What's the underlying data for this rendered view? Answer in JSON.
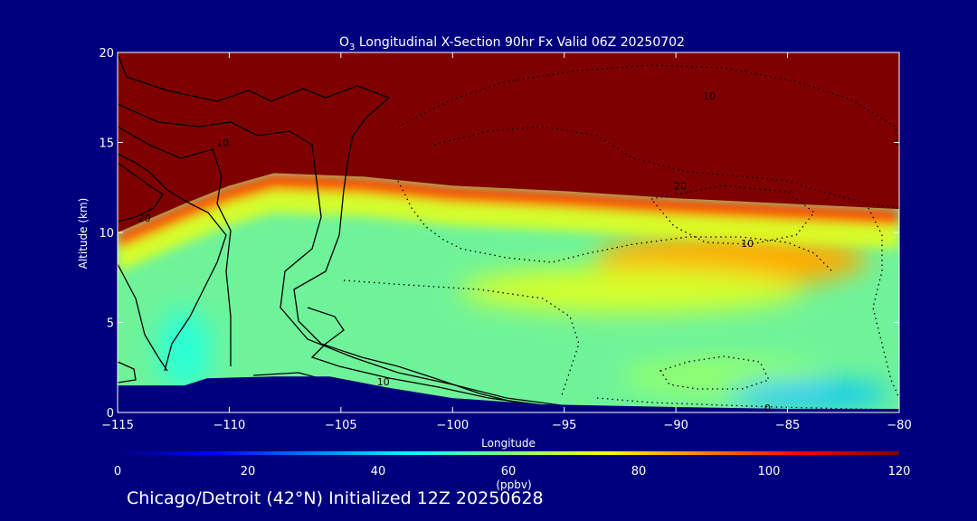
{
  "chart_data": {
    "type": "heatmap",
    "title": {
      "species": "O",
      "species_sub": "3",
      "rest": " Longitudinal X-Section 90hr  Fx Valid 06Z 20250702"
    },
    "xlabel": "Longitude",
    "ylabel": "Altitude (km)",
    "xlim": [
      -115,
      -80
    ],
    "ylim": [
      0,
      20
    ],
    "x_ticks": [
      -115,
      -110,
      -105,
      -100,
      -95,
      -90,
      -85,
      -80
    ],
    "x_tick_labels": [
      "−115",
      "−110",
      "−105",
      "−100",
      "−95",
      "−90",
      "−85",
      "−80"
    ],
    "y_ticks": [
      0,
      5,
      10,
      15,
      20
    ],
    "y_tick_labels": [
      "0",
      "5",
      "10",
      "15",
      "20"
    ],
    "colorbar": {
      "min": 0,
      "max": 120,
      "ticks": [
        0,
        20,
        40,
        60,
        80,
        100,
        120
      ],
      "tick_labels": [
        "0",
        "20",
        "40",
        "60",
        "80",
        "100",
        "120"
      ],
      "units": "(ppbv)",
      "colormap": [
        "#00007f",
        "#0000ff",
        "#0080ff",
        "#00ffff",
        "#80ff80",
        "#ffff00",
        "#ff8000",
        "#ff0000",
        "#7f0000"
      ]
    },
    "ozone_fields": {
      "stratosphere_ppbv": 120,
      "tropopause_height_km": [
        {
          "lon": -115,
          "km": 10
        },
        {
          "lon": -112,
          "km": 11.6
        },
        {
          "lon": -110,
          "km": 12.6
        },
        {
          "lon": -108,
          "km": 13.3
        },
        {
          "lon": -104,
          "km": 13.1
        },
        {
          "lon": -100,
          "km": 12.6
        },
        {
          "lon": -95,
          "km": 12.3
        },
        {
          "lon": -90,
          "km": 11.9
        },
        {
          "lon": -85,
          "km": 11.6
        },
        {
          "lon": -80,
          "km": 11.3
        }
      ],
      "features": [
        {
          "name": "upper-troposphere-high",
          "lon": -87.5,
          "km": 8.5,
          "ppbv": 85
        },
        {
          "name": "midlevel-band",
          "lon": -92,
          "km": 6.8,
          "ppbv": 70
        },
        {
          "name": "low-level-pocket",
          "lon": -88,
          "km": 2.0,
          "ppbv": 62
        },
        {
          "name": "boundary-layer-low",
          "lon": -84,
          "km": 1.0,
          "ppbv": 38
        },
        {
          "name": "western-lowlevel",
          "lon": -112,
          "km": 3.5,
          "ppbv": 50
        }
      ]
    },
    "terrain_km": [
      {
        "lon": -115,
        "km": 1.5
      },
      {
        "lon": -112,
        "km": 1.5
      },
      {
        "lon": -111,
        "km": 1.9
      },
      {
        "lon": -108,
        "km": 2.0
      },
      {
        "lon": -105.5,
        "km": 2.0
      },
      {
        "lon": -103,
        "km": 1.4
      },
      {
        "lon": -100,
        "km": 0.8
      },
      {
        "lon": -96,
        "km": 0.45
      },
      {
        "lon": -90,
        "km": 0.3
      },
      {
        "lon": -85,
        "km": 0.2
      },
      {
        "lon": -80,
        "km": 0.2
      }
    ],
    "contour_labels": [
      {
        "text": "10",
        "lon": -110.3,
        "km": 15.0
      },
      {
        "text": "20",
        "lon": -113.8,
        "km": 10.8
      },
      {
        "text": "10",
        "lon": -88.5,
        "km": 17.6
      },
      {
        "text": "20",
        "lon": -89.8,
        "km": 12.6
      },
      {
        "text": "10",
        "lon": -86.8,
        "km": 9.4
      },
      {
        "text": "10",
        "lon": -103.1,
        "km": 1.7
      },
      {
        "text": "0",
        "lon": -85.9,
        "km": 0.25
      }
    ]
  },
  "caption": "Chicago/Detroit (42°N) Initialized 12Z 20250628"
}
